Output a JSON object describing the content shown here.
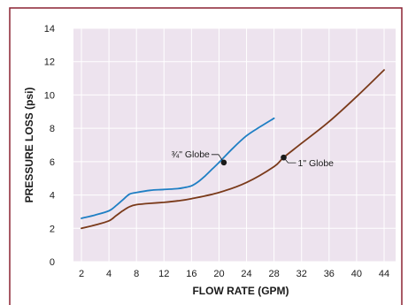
{
  "chart_data": {
    "type": "line",
    "xlabel": "FLOW RATE (GPM)",
    "ylabel": "PRESSURE LOSS (psi)",
    "x_ticks": [
      "2",
      "4",
      "8",
      "12",
      "16",
      "20",
      "24",
      "28",
      "32",
      "36",
      "40",
      "44"
    ],
    "y_ticks": [
      0,
      2,
      4,
      6,
      8,
      10,
      12,
      14
    ],
    "ylim": [
      0,
      14
    ],
    "grid": true,
    "series": [
      {
        "name": "¾\" Globe",
        "color": "#1f7fc4",
        "points": [
          [
            2,
            2.6
          ],
          [
            3,
            2.8
          ],
          [
            4,
            3.05
          ],
          [
            5,
            3.35
          ],
          [
            6,
            3.7
          ],
          [
            7,
            4.05
          ],
          [
            8,
            4.15
          ],
          [
            10,
            4.28
          ],
          [
            12,
            4.33
          ],
          [
            14,
            4.38
          ],
          [
            15,
            4.45
          ],
          [
            16,
            4.55
          ],
          [
            17,
            4.8
          ],
          [
            18,
            5.15
          ],
          [
            19,
            5.55
          ],
          [
            20,
            5.95
          ],
          [
            22,
            6.8
          ],
          [
            24,
            7.55
          ],
          [
            26,
            8.1
          ],
          [
            28,
            8.6
          ]
        ]
      },
      {
        "name": "1\" Globe",
        "color": "#7a3a1a",
        "points": [
          [
            2,
            2.0
          ],
          [
            3,
            2.2
          ],
          [
            4,
            2.45
          ],
          [
            5,
            2.75
          ],
          [
            6,
            3.05
          ],
          [
            7,
            3.3
          ],
          [
            8,
            3.42
          ],
          [
            10,
            3.5
          ],
          [
            12,
            3.56
          ],
          [
            14,
            3.65
          ],
          [
            16,
            3.78
          ],
          [
            20,
            4.15
          ],
          [
            24,
            4.75
          ],
          [
            28,
            5.7
          ],
          [
            29.4,
            6.25
          ],
          [
            32,
            7.1
          ],
          [
            36,
            8.4
          ],
          [
            40,
            9.9
          ],
          [
            44,
            11.5
          ]
        ]
      }
    ],
    "annotations": [
      {
        "label": "¾\" Globe",
        "x": 20.7,
        "y": 5.95
      },
      {
        "label": "1\" Globe",
        "x": 29.4,
        "y": 6.25
      }
    ]
  },
  "colors": {
    "plot_background": "#ede3ee",
    "gridline": "#ffffff",
    "frame": "#8b2232",
    "axis_text": "#1a1a1a"
  }
}
